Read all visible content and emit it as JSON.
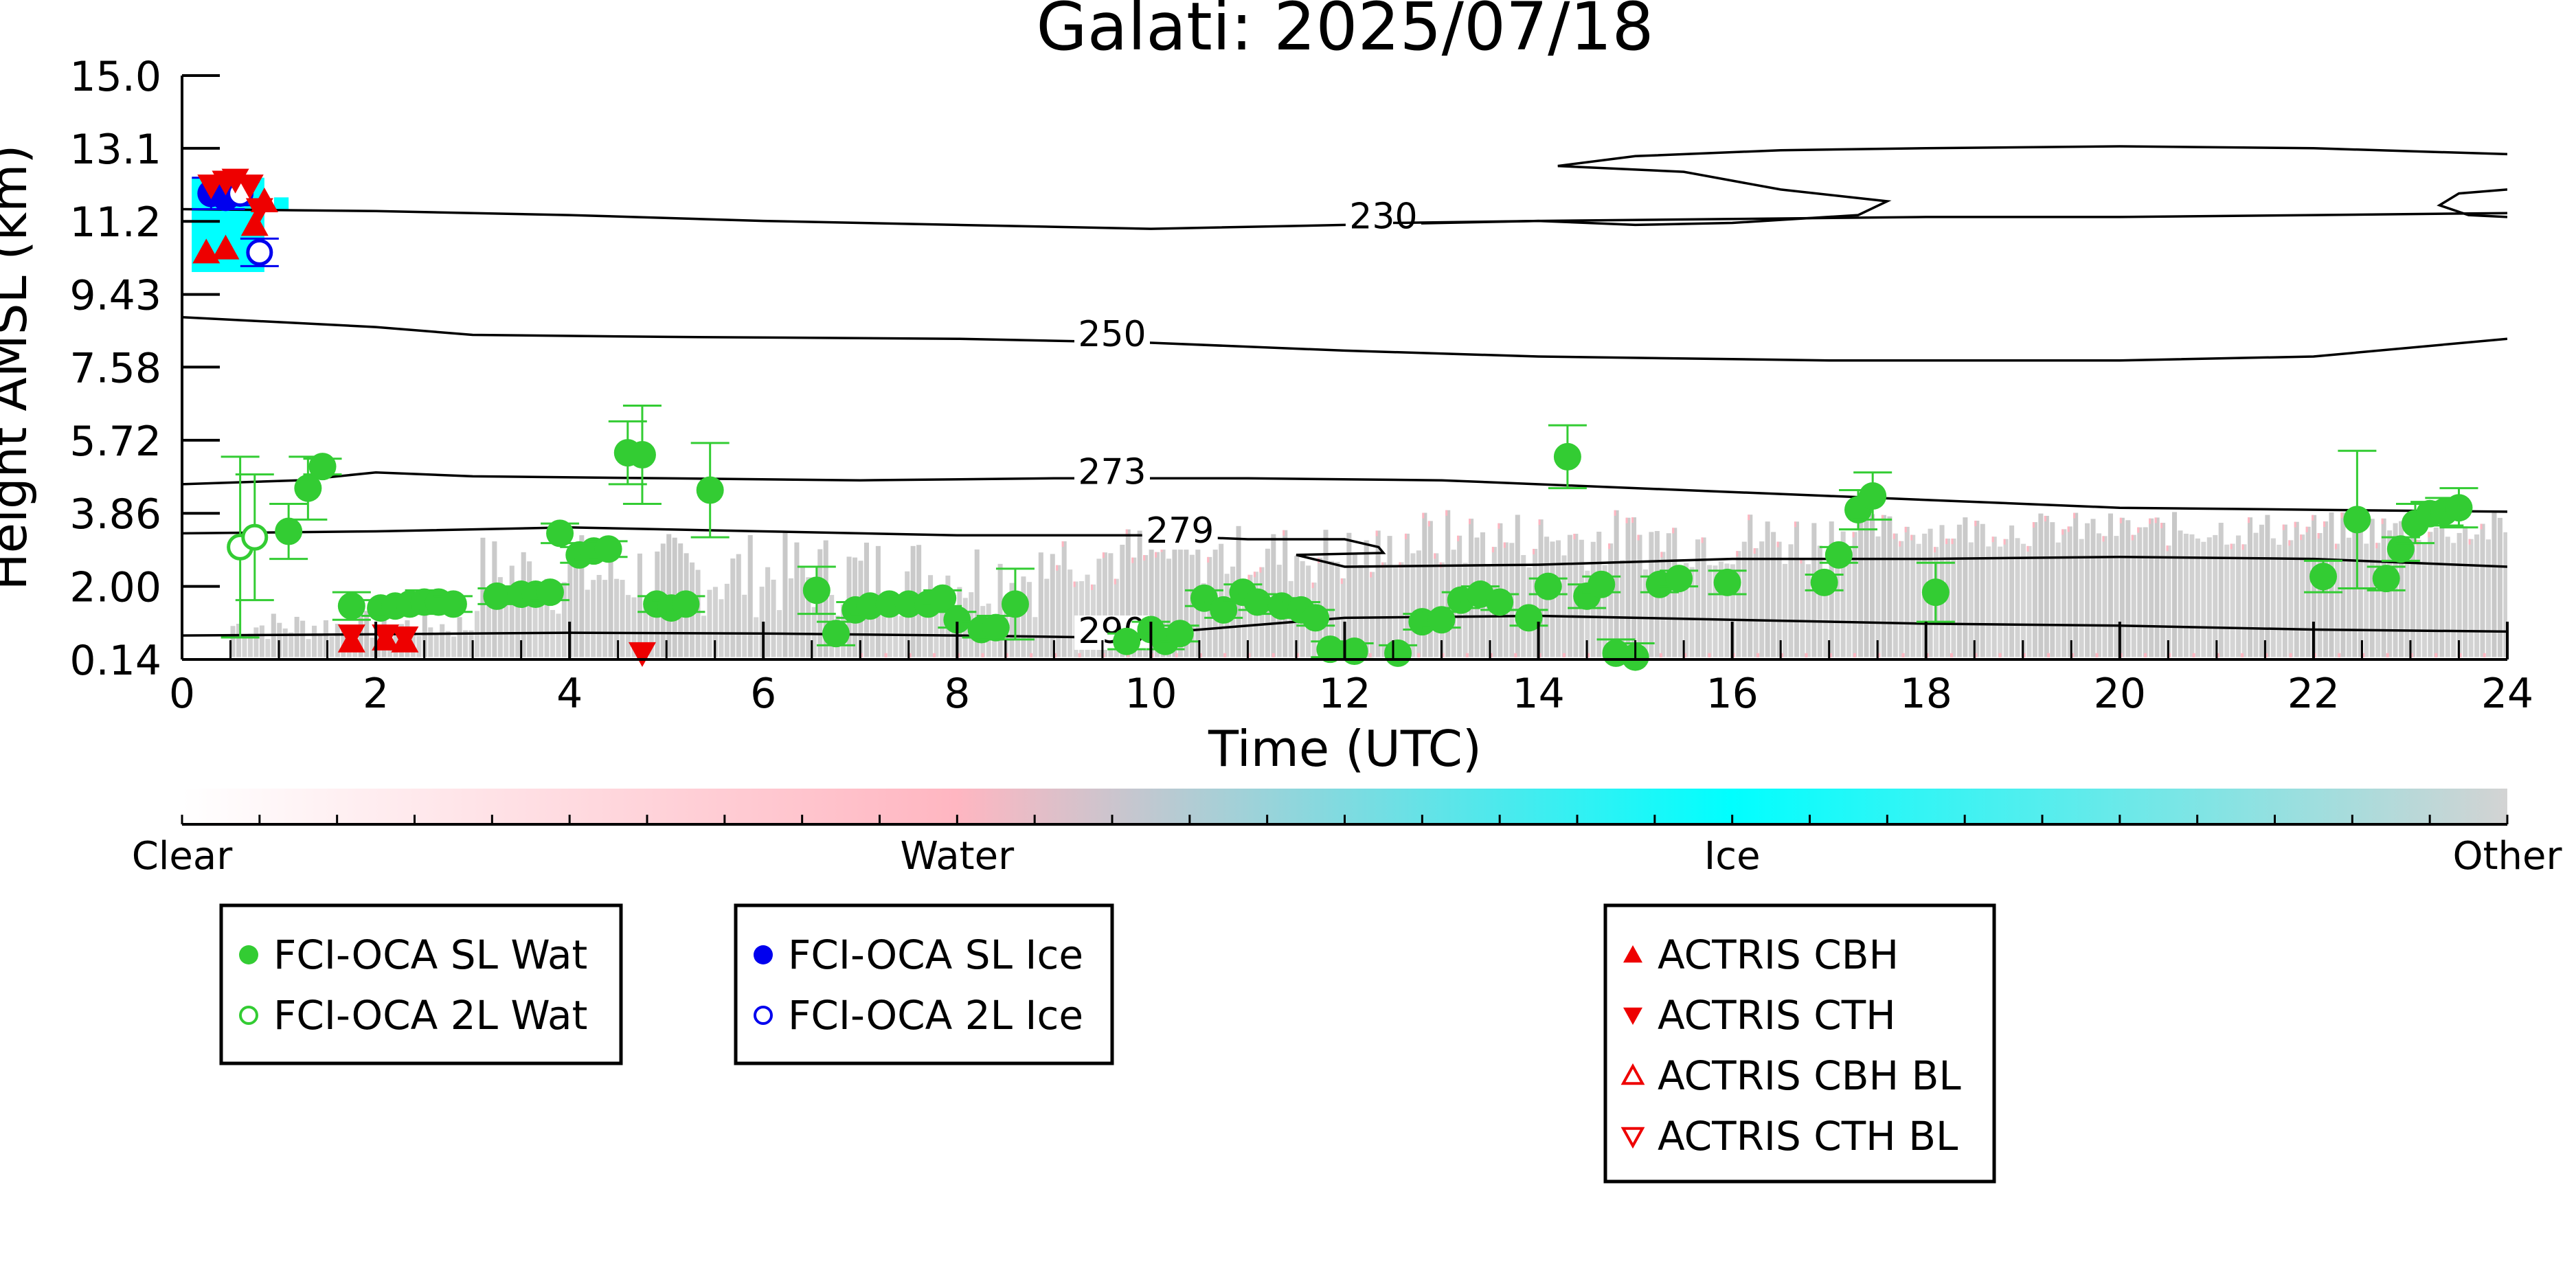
{
  "chart_data": {
    "type": "scatter",
    "title": "Galati: 2025/07/18",
    "xlabel": "Time (UTC)",
    "ylabel": "Height AMSL (km)",
    "xlim": [
      0,
      24
    ],
    "ylim": [
      0.14,
      15.0
    ],
    "x_ticks": [
      "0",
      "2",
      "4",
      "6",
      "8",
      "10",
      "12",
      "14",
      "16",
      "18",
      "20",
      "22",
      "24"
    ],
    "y_ticks": [
      "0.14",
      "2.00",
      "3.86",
      "5.72",
      "7.58",
      "9.43",
      "11.2",
      "13.1",
      "15.0"
    ],
    "y_tick_values": [
      0.14,
      2.0,
      3.86,
      5.72,
      7.58,
      9.43,
      11.29,
      13.15,
      15.0
    ],
    "colorbar": {
      "labels": [
        "Clear",
        "Water",
        "Ice",
        "Other"
      ],
      "colors": [
        "#ffffff",
        "#ffb6c1",
        "#00ffff",
        "#d3d3d3"
      ]
    },
    "colors": {
      "sl_water": "#33cc33",
      "sl_ice": "#0000ee",
      "actris": "#ee0000",
      "cloud_ice": "#00ffff",
      "cloud_other": "#c8c8c8",
      "cloud_water": "#ffb6c1"
    },
    "contours": [
      {
        "label": "230",
        "label_pos": [
          12.4,
          11.25
        ],
        "path": [
          [
            0,
            11.6
          ],
          [
            2,
            11.55
          ],
          [
            4,
            11.45
          ],
          [
            6,
            11.3
          ],
          [
            8,
            11.2
          ],
          [
            10,
            11.1
          ],
          [
            12,
            11.2
          ],
          [
            14,
            11.3
          ],
          [
            16,
            11.35
          ],
          [
            18,
            11.4
          ],
          [
            20,
            11.4
          ],
          [
            22,
            11.45
          ],
          [
            24,
            11.5
          ]
        ]
      },
      {
        "label": "",
        "label_pos": null,
        "path": [
          [
            14.2,
            12.7
          ],
          [
            15.5,
            12.55
          ],
          [
            16.5,
            12.1
          ],
          [
            17.6,
            11.8
          ],
          [
            17.3,
            11.45
          ],
          [
            16.0,
            11.25
          ],
          [
            15.0,
            11.2
          ],
          [
            14.0,
            11.3
          ],
          [
            12.5,
            11.25
          ]
        ]
      },
      {
        "label": "",
        "label_pos": null,
        "path": [
          [
            14.2,
            12.7
          ],
          [
            15.0,
            12.95
          ],
          [
            16.5,
            13.1
          ],
          [
            18.0,
            13.15
          ],
          [
            20.0,
            13.2
          ],
          [
            22.0,
            13.15
          ],
          [
            24,
            13.0
          ]
        ]
      },
      {
        "label": "",
        "label_pos": null,
        "path": [
          [
            24,
            12.1
          ],
          [
            23.5,
            12.0
          ],
          [
            23.3,
            11.7
          ],
          [
            23.6,
            11.45
          ],
          [
            24,
            11.4
          ]
        ]
      },
      {
        "label": "250",
        "label_pos": [
          9.6,
          8.25
        ],
        "path": [
          [
            0,
            8.85
          ],
          [
            2,
            8.6
          ],
          [
            3,
            8.4
          ],
          [
            5,
            8.35
          ],
          [
            8,
            8.3
          ],
          [
            10,
            8.2
          ],
          [
            12,
            8.0
          ],
          [
            14,
            7.85
          ],
          [
            17,
            7.75
          ],
          [
            20,
            7.75
          ],
          [
            22,
            7.85
          ],
          [
            24,
            8.3
          ]
        ]
      },
      {
        "label": "273",
        "label_pos": [
          9.6,
          4.75
        ],
        "path": [
          [
            0,
            4.6
          ],
          [
            1.2,
            4.7
          ],
          [
            2,
            4.9
          ],
          [
            3,
            4.8
          ],
          [
            5,
            4.75
          ],
          [
            7,
            4.7
          ],
          [
            9,
            4.75
          ],
          [
            11,
            4.75
          ],
          [
            13,
            4.7
          ],
          [
            15,
            4.5
          ],
          [
            17,
            4.3
          ],
          [
            20,
            4.0
          ],
          [
            22,
            3.95
          ],
          [
            24,
            3.9
          ]
        ]
      },
      {
        "label": "279",
        "label_pos": [
          10.3,
          3.25
        ],
        "path": [
          [
            0,
            3.35
          ],
          [
            2,
            3.4
          ],
          [
            4,
            3.5
          ],
          [
            6,
            3.4
          ],
          [
            8,
            3.3
          ],
          [
            10,
            3.3
          ],
          [
            11,
            3.2
          ],
          [
            12,
            3.2
          ],
          [
            12.35,
            3.0
          ],
          [
            12.4,
            2.85
          ],
          [
            11.5,
            2.8
          ],
          [
            12,
            2.5
          ],
          [
            14,
            2.55
          ],
          [
            16,
            2.7
          ],
          [
            18,
            2.7
          ],
          [
            20,
            2.75
          ],
          [
            22,
            2.7
          ],
          [
            24,
            2.5
          ]
        ]
      },
      {
        "label": "290",
        "label_pos": [
          9.6,
          0.7
        ],
        "path": [
          [
            0,
            0.75
          ],
          [
            2,
            0.78
          ],
          [
            4,
            0.82
          ],
          [
            6,
            0.8
          ],
          [
            8,
            0.75
          ],
          [
            9.5,
            0.7
          ],
          [
            10,
            0.8
          ],
          [
            12,
            1.2
          ],
          [
            14,
            1.25
          ],
          [
            16,
            1.15
          ],
          [
            18,
            1.05
          ],
          [
            20,
            1.0
          ],
          [
            22,
            0.9
          ],
          [
            24,
            0.85
          ]
        ]
      }
    ],
    "series": [
      {
        "name": "FCI-OCA SL Wat",
        "marker": "filled-circle",
        "color": "#33cc33",
        "points": [
          [
            1.1,
            3.4,
            0.7
          ],
          [
            1.3,
            4.5,
            0.8
          ],
          [
            1.45,
            5.05,
            0.2
          ],
          [
            1.75,
            1.5,
            0.35
          ],
          [
            2.05,
            1.45,
            0.2
          ],
          [
            2.2,
            1.5,
            0.2
          ],
          [
            2.35,
            1.55,
            0.2
          ],
          [
            2.5,
            1.6,
            0.3
          ],
          [
            2.65,
            1.6,
            0.2
          ],
          [
            2.8,
            1.55,
            0.2
          ],
          [
            3.25,
            1.75,
            0.2
          ],
          [
            3.5,
            1.8,
            0.2
          ],
          [
            3.65,
            1.8,
            0.2
          ],
          [
            3.8,
            1.85,
            0.2
          ],
          [
            3.9,
            3.35,
            0.25
          ],
          [
            4.1,
            2.8,
            0.2
          ],
          [
            4.25,
            2.9,
            0.2
          ],
          [
            4.4,
            2.95,
            0.2
          ],
          [
            4.6,
            5.4,
            0.8
          ],
          [
            4.75,
            5.35,
            1.25
          ],
          [
            4.9,
            1.55,
            0.2
          ],
          [
            5.05,
            1.45,
            0.2
          ],
          [
            5.2,
            1.55,
            0.2
          ],
          [
            5.45,
            4.45,
            1.2
          ],
          [
            6.55,
            1.9,
            0.6
          ],
          [
            6.75,
            0.8,
            0.3
          ],
          [
            6.95,
            1.4,
            0.2
          ],
          [
            7.1,
            1.5,
            0.2
          ],
          [
            7.3,
            1.55,
            0.2
          ],
          [
            7.5,
            1.55,
            0.2
          ],
          [
            7.7,
            1.55,
            0.2
          ],
          [
            7.85,
            1.7,
            0.2
          ],
          [
            8.0,
            1.15,
            0.2
          ],
          [
            8.25,
            0.9,
            0.2
          ],
          [
            8.4,
            0.95,
            0.3
          ],
          [
            8.6,
            1.55,
            0.9
          ],
          [
            9.75,
            0.6,
            0.2
          ],
          [
            10.0,
            0.9,
            0.2
          ],
          [
            10.15,
            0.6,
            0.2
          ],
          [
            10.3,
            0.8,
            0.2
          ],
          [
            10.55,
            1.7,
            0.2
          ],
          [
            10.75,
            1.4,
            0.2
          ],
          [
            10.95,
            1.85,
            0.2
          ],
          [
            11.1,
            1.6,
            0.2
          ],
          [
            11.35,
            1.5,
            0.2
          ],
          [
            11.55,
            1.4,
            0.2
          ],
          [
            11.7,
            1.2,
            0.2
          ],
          [
            11.85,
            0.4,
            0.2
          ],
          [
            12.1,
            0.35,
            0.2
          ],
          [
            12.55,
            0.3,
            0.2
          ],
          [
            12.8,
            1.1,
            0.2
          ],
          [
            13.0,
            1.15,
            0.2
          ],
          [
            13.2,
            1.65,
            0.2
          ],
          [
            13.4,
            1.8,
            0.2
          ],
          [
            13.6,
            1.6,
            0.2
          ],
          [
            13.9,
            1.2,
            0.2
          ],
          [
            14.1,
            2.0,
            0.2
          ],
          [
            14.3,
            5.3,
            0.8
          ],
          [
            14.5,
            1.75,
            0.3
          ],
          [
            14.65,
            2.05,
            0.2
          ],
          [
            14.8,
            0.3,
            0.35
          ],
          [
            15.0,
            0.2,
            0.35
          ],
          [
            15.25,
            2.05,
            0.2
          ],
          [
            15.45,
            2.2,
            0.2
          ],
          [
            15.95,
            2.1,
            0.3
          ],
          [
            16.95,
            2.1,
            0.2
          ],
          [
            17.1,
            2.8,
            0.2
          ],
          [
            17.3,
            3.95,
            0.5
          ],
          [
            17.45,
            4.3,
            0.6
          ],
          [
            18.1,
            1.85,
            0.75
          ],
          [
            22.1,
            2.25,
            0.4
          ],
          [
            22.45,
            3.7,
            1.75
          ],
          [
            22.75,
            2.2,
            0.3
          ],
          [
            22.9,
            2.95,
            0.3
          ],
          [
            23.05,
            3.6,
            0.5
          ],
          [
            23.2,
            3.85,
            0.3
          ],
          [
            23.35,
            3.9,
            0.35
          ],
          [
            23.5,
            4.0,
            0.5
          ]
        ]
      },
      {
        "name": "FCI-OCA 2L Wat",
        "marker": "open-circle",
        "color": "#33cc33",
        "points": [
          [
            0.6,
            3.0,
            2.3
          ],
          [
            0.75,
            3.25,
            1.6
          ]
        ]
      },
      {
        "name": "FCI-OCA SL Ice",
        "marker": "filled-circle",
        "color": "#0000ee",
        "points": [
          [
            0.3,
            12.0,
            0.4
          ],
          [
            0.45,
            11.9,
            0.3
          ]
        ]
      },
      {
        "name": "FCI-OCA 2L Ice",
        "marker": "open-circle",
        "color": "#0000ee",
        "points": [
          [
            0.6,
            12.0,
            0.3
          ],
          [
            0.8,
            10.5,
            0.35
          ]
        ]
      },
      {
        "name": "ACTRIS CBH",
        "marker": "triangle-up",
        "color": "#ee0000",
        "points": [
          [
            0.25,
            10.5,
            0
          ],
          [
            0.45,
            10.6,
            0
          ],
          [
            0.75,
            11.2,
            0
          ],
          [
            0.85,
            11.8,
            0
          ],
          [
            1.75,
            0.6,
            0
          ],
          [
            2.1,
            0.65,
            0
          ],
          [
            2.3,
            0.6,
            0
          ]
        ]
      },
      {
        "name": "ACTRIS CTH",
        "marker": "triangle-down",
        "color": "#ee0000",
        "points": [
          [
            0.3,
            12.2,
            0
          ],
          [
            0.45,
            12.3,
            0
          ],
          [
            0.55,
            12.35,
            0
          ],
          [
            0.7,
            12.2,
            0
          ],
          [
            0.8,
            11.6,
            0
          ],
          [
            1.75,
            0.75,
            0
          ],
          [
            2.1,
            0.75,
            0
          ],
          [
            2.3,
            0.7,
            0
          ],
          [
            4.75,
            0.3,
            0
          ]
        ]
      },
      {
        "name": "ACTRIS CBH BL",
        "marker": "open-triangle-up",
        "color": "#ee0000",
        "points": []
      },
      {
        "name": "ACTRIS CTH BL",
        "marker": "open-triangle-down",
        "color": "#ee0000",
        "points": []
      }
    ],
    "legend_groups": [
      [
        "FCI-OCA SL Wat",
        "FCI-OCA 2L Wat"
      ],
      [
        "FCI-OCA SL Ice",
        "FCI-OCA 2L Ice"
      ],
      [
        "ACTRIS CBH",
        "ACTRIS CTH",
        "ACTRIS CBH BL",
        "ACTRIS CTH BL"
      ]
    ]
  }
}
